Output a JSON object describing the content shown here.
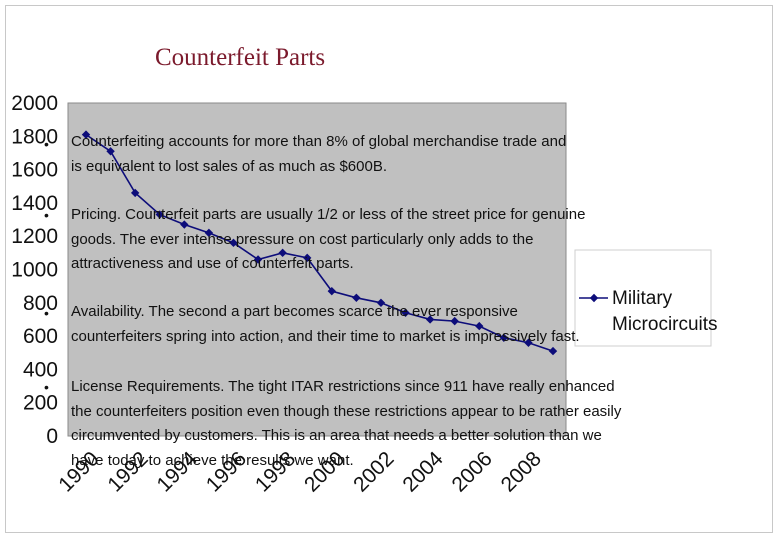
{
  "slide": {
    "title": "Counterfeit Parts",
    "paragraphs": [
      {
        "lines": [
          "Counterfeiting accounts for more than 8% of global merchandise trade and",
          " is equivalent to lost sales of as much as $600B."
        ]
      },
      {
        "lines": [
          "Pricing. Counterfeit parts are usually 1/2 or less of the street price for genuine",
          "goods.  The ever intense  pressure on cost particularly only adds to the",
          "attractiveness and use of counterfeit parts."
        ]
      },
      {
        "lines": [
          "Availability. The second a part becomes scarce the ever responsive",
          "counterfeiters spring into action, and their time to market is impressively fast."
        ]
      },
      {
        "lines": [
          "License Requirements.  The tight ITAR restrictions since 911 have really enhanced",
          "the counterfeiters position even though these restrictions appear to be rather easily",
          "circumvented by customers. This is an area that needs a better solution than we",
          "have today to achieve the results we want."
        ]
      }
    ],
    "bullet_glyph": "•"
  },
  "chart_data": {
    "type": "line",
    "title": "",
    "xlabel": "",
    "ylabel": "",
    "x": [
      1990,
      1991,
      1992,
      1993,
      1994,
      1995,
      1996,
      1997,
      1998,
      1999,
      2000,
      2001,
      2002,
      2003,
      2004,
      2005,
      2006,
      2007,
      2008,
      2009
    ],
    "series": [
      {
        "name": "Military Microcircuits",
        "values": [
          1810,
          1710,
          1460,
          1330,
          1270,
          1220,
          1160,
          1060,
          1100,
          1070,
          870,
          830,
          800,
          740,
          700,
          690,
          660,
          590,
          560,
          510
        ],
        "color": "#0d0d7a",
        "marker": "diamond"
      }
    ],
    "xticks": [
      "1990",
      "1992",
      "1994",
      "1996",
      "1998",
      "2000",
      "2002",
      "2004",
      "2006",
      "2008"
    ],
    "yticks": [
      "0",
      "200",
      "400",
      "600",
      "800",
      "1000",
      "1200",
      "1400",
      "1600",
      "1800",
      "2000"
    ],
    "ylim": [
      0,
      2000
    ],
    "xlim": [
      1990,
      2009
    ],
    "plot_background": "#c0c0c0",
    "grid": false,
    "legend": "right"
  }
}
